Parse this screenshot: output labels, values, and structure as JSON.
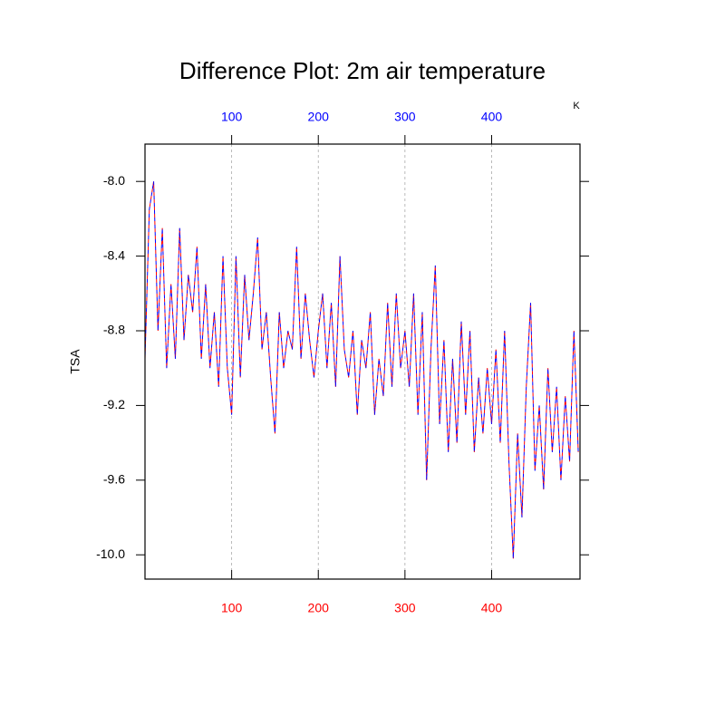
{
  "chart_data": {
    "type": "line",
    "title": "Difference Plot: 2m air temperature",
    "ylabel": "TSA",
    "units": "K",
    "x": [
      0,
      5,
      10,
      15,
      20,
      25,
      30,
      35,
      40,
      45,
      50,
      55,
      60,
      65,
      70,
      75,
      80,
      85,
      90,
      95,
      100,
      105,
      110,
      115,
      120,
      125,
      130,
      135,
      140,
      145,
      150,
      155,
      160,
      165,
      170,
      175,
      180,
      185,
      190,
      195,
      200,
      205,
      210,
      215,
      220,
      225,
      230,
      235,
      240,
      245,
      250,
      255,
      260,
      265,
      270,
      275,
      280,
      285,
      290,
      295,
      300,
      305,
      310,
      315,
      320,
      325,
      330,
      335,
      340,
      345,
      350,
      355,
      360,
      365,
      370,
      375,
      380,
      385,
      390,
      395,
      400,
      405,
      410,
      415,
      420,
      425,
      430,
      435,
      440,
      445,
      450,
      455,
      460,
      465,
      470,
      475,
      480,
      485,
      490,
      495,
      500
    ],
    "series": [
      {
        "color": "#ff0000",
        "values": [
          -8.95,
          -8.15,
          -8.0,
          -8.8,
          -8.25,
          -9.0,
          -8.55,
          -8.95,
          -8.25,
          -8.85,
          -8.5,
          -8.7,
          -8.35,
          -8.95,
          -8.55,
          -9.0,
          -8.7,
          -9.1,
          -8.4,
          -9.0,
          -9.25,
          -8.4,
          -9.05,
          -8.5,
          -8.85,
          -8.6,
          -8.3,
          -8.9,
          -8.7,
          -9.05,
          -9.35,
          -8.7,
          -9.0,
          -8.8,
          -8.9,
          -8.35,
          -8.95,
          -8.6,
          -8.85,
          -9.05,
          -8.8,
          -8.6,
          -9.0,
          -8.65,
          -9.1,
          -8.4,
          -8.9,
          -9.05,
          -8.8,
          -9.25,
          -8.85,
          -9.0,
          -8.7,
          -9.25,
          -8.95,
          -9.15,
          -8.65,
          -9.1,
          -8.6,
          -9.0,
          -8.8,
          -9.1,
          -8.6,
          -9.25,
          -8.7,
          -9.6,
          -8.9,
          -8.45,
          -9.3,
          -8.85,
          -9.45,
          -8.95,
          -9.4,
          -8.75,
          -9.25,
          -8.8,
          -9.45,
          -9.05,
          -9.35,
          -9.0,
          -9.3,
          -8.9,
          -9.4,
          -8.8,
          -9.5,
          -10.02,
          -9.35,
          -9.8,
          -9.1,
          -8.65,
          -9.55,
          -9.2,
          -9.65,
          -9.0,
          -9.45,
          -9.1,
          -9.6,
          -9.15,
          -9.5,
          -8.8,
          -9.45
        ]
      },
      {
        "color": "#0000ff",
        "values": [
          -8.95,
          -8.15,
          -8.0,
          -8.8,
          -8.25,
          -9.0,
          -8.55,
          -8.95,
          -8.25,
          -8.85,
          -8.5,
          -8.7,
          -8.35,
          -8.95,
          -8.55,
          -9.0,
          -8.7,
          -9.1,
          -8.4,
          -9.0,
          -9.25,
          -8.4,
          -9.05,
          -8.5,
          -8.85,
          -8.6,
          -8.3,
          -8.9,
          -8.7,
          -9.05,
          -9.35,
          -8.7,
          -9.0,
          -8.8,
          -8.9,
          -8.35,
          -8.95,
          -8.6,
          -8.85,
          -9.05,
          -8.8,
          -8.6,
          -9.0,
          -8.65,
          -9.1,
          -8.4,
          -8.9,
          -9.05,
          -8.8,
          -9.25,
          -8.85,
          -9.0,
          -8.7,
          -9.25,
          -8.95,
          -9.15,
          -8.65,
          -9.1,
          -8.6,
          -9.0,
          -8.8,
          -9.1,
          -8.6,
          -9.25,
          -8.7,
          -9.6,
          -8.9,
          -8.45,
          -9.3,
          -8.85,
          -9.45,
          -8.95,
          -9.4,
          -8.75,
          -9.25,
          -8.8,
          -9.45,
          -9.05,
          -9.35,
          -9.0,
          -9.3,
          -8.9,
          -9.4,
          -8.8,
          -9.5,
          -10.02,
          -9.35,
          -9.8,
          -9.1,
          -8.65,
          -9.55,
          -9.2,
          -9.65,
          -9.0,
          -9.45,
          -9.1,
          -9.6,
          -9.15,
          -9.5,
          -8.8,
          -9.45
        ]
      }
    ],
    "xlim": [
      0,
      502
    ],
    "xticks": [
      100,
      200,
      300,
      400
    ],
    "x_top_color": "#0000ff",
    "x_bottom_color": "#ff0000",
    "ylim": [
      -10.13,
      -7.8
    ],
    "yticks": [
      {
        "value": -10,
        "label": "-10.0"
      },
      -9.6,
      -9.2,
      -8.8,
      -8.4,
      {
        "value": -8,
        "label": "-8.0"
      }
    ],
    "grid": true
  }
}
